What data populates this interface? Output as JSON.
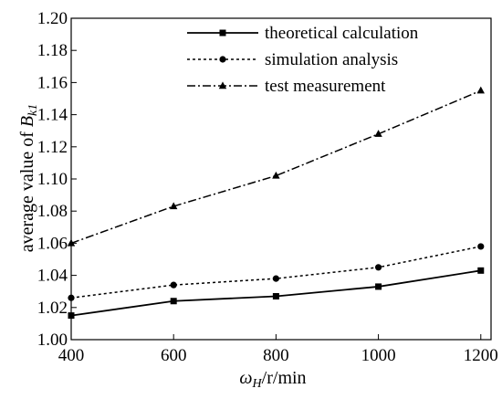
{
  "chart_data": {
    "type": "line",
    "title": "",
    "xlabel": {
      "main": "ω",
      "sub": "H",
      "rest": "/r/min"
    },
    "ylabel": {
      "main": "average value of ",
      "var": "B",
      "sub": "k1"
    },
    "x": [
      400,
      600,
      800,
      1000,
      1200
    ],
    "xlim": [
      400,
      1220
    ],
    "ylim": [
      1.0,
      1.2
    ],
    "xticks": [
      400,
      600,
      800,
      1000,
      1200
    ],
    "yticks": [
      1.0,
      1.02,
      1.04,
      1.06,
      1.08,
      1.1,
      1.12,
      1.14,
      1.16,
      1.18,
      1.2
    ],
    "legend_position": "top-right",
    "grid": false,
    "series": [
      {
        "name": "theoretical calculation",
        "values": [
          1.015,
          1.024,
          1.027,
          1.033,
          1.043
        ],
        "line_style": "solid",
        "marker": "square",
        "color": "#000000"
      },
      {
        "name": "simulation analysis",
        "values": [
          1.026,
          1.034,
          1.038,
          1.045,
          1.058
        ],
        "line_style": "dotted",
        "marker": "circle",
        "color": "#000000"
      },
      {
        "name": "test measurement",
        "values": [
          1.06,
          1.083,
          1.102,
          1.128,
          1.155
        ],
        "line_style": "dash-dot",
        "marker": "triangle",
        "color": "#000000"
      }
    ]
  }
}
